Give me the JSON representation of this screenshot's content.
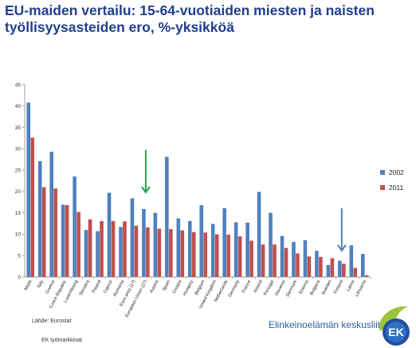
{
  "title": "EU-maiden vertailu: 15-64-vuotiaiden miesten ja naisten työllisyysasteiden ero, %-yksikköä",
  "source": "Lähde: Eurostat",
  "footer_org": "EK työmarkkinat",
  "brand_name": "Elinkeinoelämän keskusliitto",
  "logo_text": "EK",
  "colors": {
    "series_2002": "#4f81bd",
    "series_2011": "#c0504d",
    "green_arrow": "#2aa14a",
    "blue_arrow": "#4f81bd",
    "title": "#1f3f8f"
  },
  "chart_data": {
    "type": "bar",
    "title": "EU-maiden vertailu: 15-64-vuotiaiden miesten ja naisten työllisyysasteiden ero, %-yksikköä",
    "xlabel": "",
    "ylabel": "",
    "ylim": [
      0,
      45
    ],
    "yticks": [
      0,
      5,
      10,
      15,
      20,
      25,
      30,
      35,
      40,
      45
    ],
    "grid": false,
    "legend_position": "right",
    "categories": [
      "Malta",
      "Italy",
      "Greece",
      "Czech Republic",
      "Luxembourg",
      "Slovakia",
      "Poland",
      "Cyprus",
      "Romania",
      "Euro area (17)",
      "European Union (27)",
      "Austria",
      "Spain",
      "Croatia",
      "Hungary",
      "Belgium",
      "United Kingdom",
      "Netherlands",
      "Germany",
      "France",
      "Ireland",
      "Portugal",
      "Slovenia",
      "Denmark",
      "Estonia",
      "Bulgaria",
      "Sweden",
      "Finland",
      "Latvia",
      "Lithuania"
    ],
    "series": [
      {
        "name": "2002",
        "values": [
          40.8,
          27.1,
          29.3,
          16.9,
          23.5,
          11.0,
          10.7,
          19.7,
          11.7,
          18.4,
          15.9,
          15.0,
          28.1,
          13.7,
          13.1,
          16.8,
          12.4,
          16.1,
          12.8,
          12.7,
          19.9,
          15.0,
          9.6,
          8.2,
          8.6,
          6.1,
          2.8,
          3.8,
          7.4,
          5.4
        ]
      },
      {
        "name": "2011",
        "values": [
          32.6,
          21.0,
          20.7,
          16.8,
          15.2,
          13.5,
          13.1,
          13.1,
          13.0,
          12.0,
          11.6,
          11.3,
          11.2,
          10.9,
          10.5,
          10.4,
          10.0,
          9.9,
          9.5,
          8.5,
          7.6,
          7.6,
          6.8,
          5.5,
          4.8,
          4.7,
          4.4,
          3.1,
          2.1,
          0.4
        ]
      }
    ],
    "annotations": [
      {
        "type": "arrow",
        "color": "green",
        "target": "European Union (27)"
      },
      {
        "type": "arrow",
        "color": "blue",
        "target": "Finland"
      }
    ]
  }
}
